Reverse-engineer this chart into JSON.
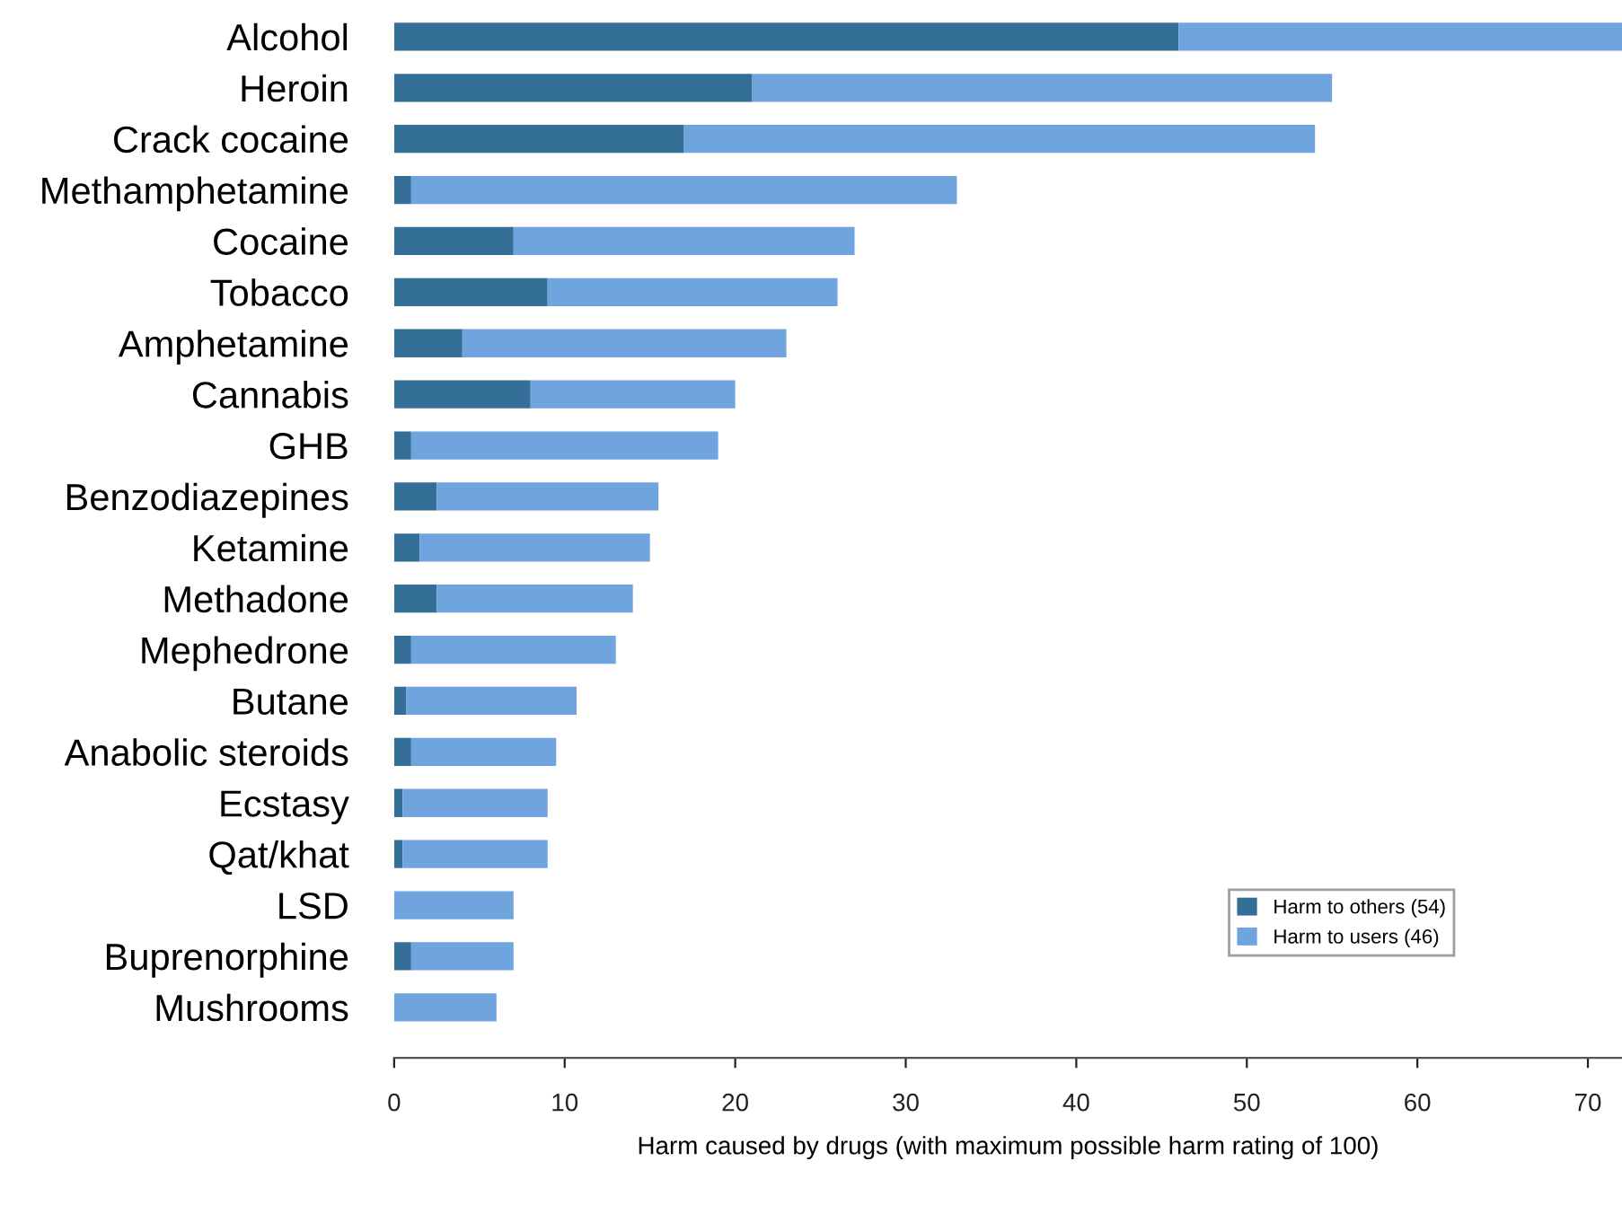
{
  "chart_data": {
    "type": "bar",
    "orientation": "horizontal",
    "stacked": true,
    "xlabel": "Harm caused by drugs (with maximum possible harm rating of 100)",
    "categories": [
      "Alcohol",
      "Heroin",
      "Crack cocaine",
      "Methamphetamine",
      "Cocaine",
      "Tobacco",
      "Amphetamine",
      "Cannabis",
      "GHB",
      "Benzodiazepines",
      "Ketamine",
      "Methadone",
      "Mephedrone",
      "Butane",
      "Anabolic steroids",
      "Ecstasy",
      "Qat/khat",
      "LSD",
      "Buprenorphine",
      "Mushrooms"
    ],
    "series": [
      {
        "name": "Harm to others (54)",
        "color": "#346f98",
        "values": [
          46,
          21,
          17,
          1,
          7,
          9,
          4,
          8,
          1,
          2.5,
          1.5,
          2.5,
          1,
          0.7,
          1,
          0.5,
          0.5,
          0,
          1,
          0
        ]
      },
      {
        "name": "Harm to users (46)",
        "color": "#6fa4de",
        "values": [
          26,
          34,
          37,
          32,
          20,
          17,
          19,
          12,
          18,
          13,
          13.5,
          11.5,
          12,
          10,
          8.5,
          8.5,
          8.5,
          7,
          6,
          6
        ]
      }
    ],
    "xlim": [
      0,
      72
    ],
    "xticks": [
      0,
      10,
      20,
      30,
      40,
      50,
      60,
      70
    ],
    "grid": false,
    "legend": "bottom right"
  }
}
